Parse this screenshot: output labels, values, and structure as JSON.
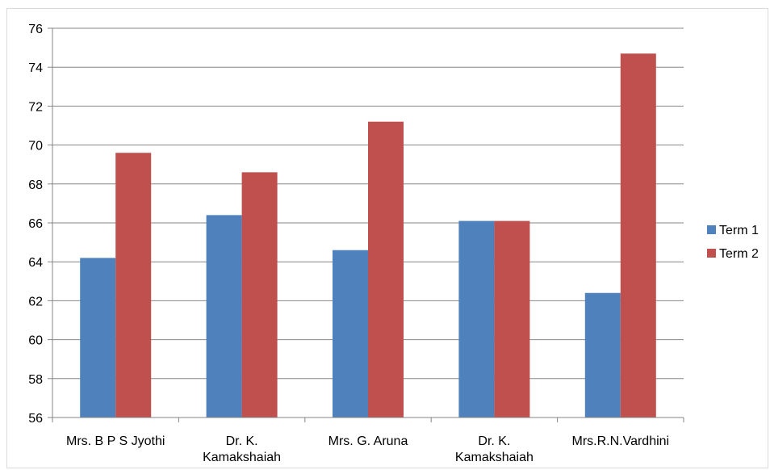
{
  "chart_data": {
    "type": "bar",
    "categories": [
      [
        "Mrs. B P S Jyothi"
      ],
      [
        "Dr. K.",
        "Kamakshaiah"
      ],
      [
        "Mrs. G. Aruna"
      ],
      [
        "Dr. K.",
        "Kamakshaiah"
      ],
      [
        "Mrs.R.N.Vardhini"
      ]
    ],
    "series": [
      {
        "name": "Term 1",
        "color": "#4f81bd",
        "values": [
          64.2,
          66.4,
          64.6,
          66.1,
          62.4
        ]
      },
      {
        "name": "Term 2",
        "color": "#c0504d",
        "values": [
          69.6,
          68.6,
          71.2,
          66.1,
          74.7
        ]
      }
    ],
    "title": "",
    "xlabel": "",
    "ylabel": "",
    "ylim": [
      56,
      76
    ],
    "yticks": [
      "56",
      "58",
      "60",
      "62",
      "64",
      "66",
      "68",
      "70",
      "72",
      "74",
      "76"
    ],
    "grid": true,
    "legend_position": "right"
  }
}
